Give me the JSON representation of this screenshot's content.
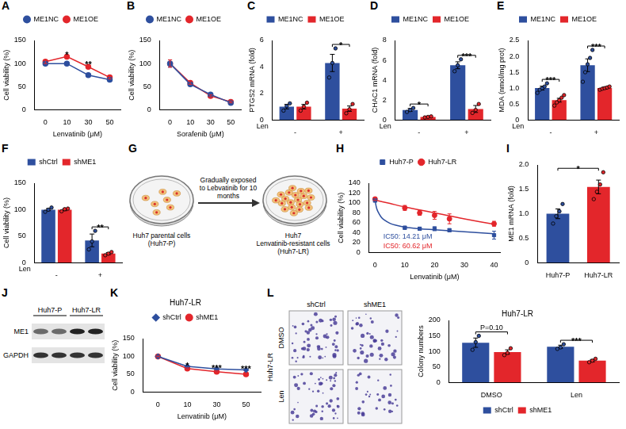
{
  "chart_data": [
    {
      "panel": "A",
      "type": "line",
      "categories": [
        "0",
        "10",
        "30",
        "50"
      ],
      "xlabel": "Lenvatinib (μM)",
      "ylabel": "Cell viability (%)",
      "ylim": [
        0,
        150
      ],
      "yticks": [
        0,
        50,
        100,
        150
      ],
      "legend": "top",
      "series": [
        {
          "name": "ME1NC",
          "color": "#2e4f9e",
          "marker": "circle",
          "values": [
            100,
            100,
            75,
            65
          ],
          "errors": [
            3,
            2,
            2,
            2
          ]
        },
        {
          "name": "ME1OE",
          "color": "#e3262b",
          "marker": "circle",
          "values": [
            104,
            115,
            93,
            70
          ],
          "errors": [
            4,
            2,
            3,
            3
          ]
        }
      ],
      "annotations": [
        {
          "text": "*",
          "category": "10"
        },
        {
          "text": "**",
          "category": "30"
        }
      ]
    },
    {
      "panel": "B",
      "type": "line",
      "categories": [
        "0",
        "10",
        "30",
        "50"
      ],
      "xlabel": "Sorafenib (μM)",
      "ylabel": "Cell viability (%)",
      "ylim": [
        0,
        150
      ],
      "yticks": [
        0,
        50,
        100,
        150
      ],
      "legend": "top",
      "series": [
        {
          "name": "ME1NC",
          "color": "#2e4f9e",
          "marker": "circle",
          "values": [
            100,
            55,
            33,
            15
          ],
          "errors": [
            8,
            3,
            2,
            2
          ]
        },
        {
          "name": "ME1OE",
          "color": "#e3262b",
          "marker": "circle",
          "values": [
            100,
            58,
            30,
            17
          ],
          "errors": [
            8,
            3,
            2,
            2
          ]
        }
      ]
    },
    {
      "panel": "C",
      "type": "bar",
      "categories": [
        "-",
        "+"
      ],
      "xlabel": "Len",
      "ylabel": "PTGS2 mRNA (fold)",
      "ylim": [
        0,
        6
      ],
      "yticks": [
        0,
        2,
        4,
        6
      ],
      "legend": "top",
      "series": [
        {
          "name": "ME1NC",
          "color": "#2e4f9e",
          "values": [
            1.0,
            4.3
          ],
          "errors": [
            0.17,
            0.65
          ],
          "points": [
            [
              0.7,
              1.05,
              1.25
            ],
            [
              3.2,
              4.3,
              5.4
            ]
          ]
        },
        {
          "name": "ME1OE",
          "color": "#e3262b",
          "values": [
            1.0,
            0.85
          ],
          "errors": [
            0.17,
            0.2
          ],
          "points": [
            [
              0.7,
              1.0,
              1.3
            ],
            [
              0.5,
              0.8,
              1.2
            ]
          ]
        }
      ],
      "annotations": [
        {
          "text": "*",
          "category": "+"
        }
      ]
    },
    {
      "panel": "D",
      "type": "bar",
      "categories": [
        "-",
        "+"
      ],
      "xlabel": "Len",
      "ylabel": "CHAC1 mRNA (fold)",
      "ylim": [
        0,
        8
      ],
      "yticks": [
        0,
        2,
        4,
        6,
        8
      ],
      "legend": "top",
      "series": [
        {
          "name": "ME1NC",
          "color": "#2e4f9e",
          "values": [
            1.0,
            5.5
          ],
          "errors": [
            0.15,
            0.35
          ],
          "points": [
            [
              0.8,
              1.0,
              1.2
            ],
            [
              4.9,
              5.5,
              6.1
            ]
          ]
        },
        {
          "name": "ME1OE",
          "color": "#e3262b",
          "values": [
            0.3,
            1.1
          ],
          "errors": [
            0.05,
            0.35
          ],
          "points": [
            [
              0.25,
              0.3,
              0.35
            ],
            [
              0.7,
              1.0,
              1.6
            ]
          ]
        }
      ],
      "annotations": [
        {
          "text": "*",
          "category": "-"
        },
        {
          "text": "***",
          "category": "+"
        }
      ]
    },
    {
      "panel": "E",
      "type": "bar",
      "categories": [
        "-",
        "+"
      ],
      "xlabel": "Len",
      "ylabel": "MDA (nmol/mg prot)",
      "ylim": [
        0,
        2.5
      ],
      "yticks": [
        0,
        0.5,
        {
          "value": 1,
          "label": "1.0"
        },
        1.5,
        {
          "value": 2,
          "label": "2.0"
        },
        2.5
      ],
      "legend": "top",
      "series": [
        {
          "name": "ME1NC",
          "color": "#2e4f9e",
          "values": [
            1.0,
            1.72
          ],
          "errors": [
            0.06,
            0.2
          ],
          "points": [
            [
              0.85,
              0.95,
              1.0,
              1.05,
              1.15
            ],
            [
              1.2,
              1.5,
              1.75,
              1.95,
              2.2
            ]
          ]
        },
        {
          "name": "ME1OE",
          "color": "#e3262b",
          "values": [
            0.62,
            1.0
          ],
          "errors": [
            0.06,
            0.03
          ],
          "points": [
            [
              0.45,
              0.55,
              0.62,
              0.7,
              0.78
            ],
            [
              0.95,
              0.98,
              1.0,
              1.02,
              1.05
            ]
          ]
        }
      ],
      "annotations": [
        {
          "text": "***",
          "category": "-"
        },
        {
          "text": "***",
          "category": "+"
        }
      ]
    },
    {
      "panel": "F",
      "type": "bar",
      "categories": [
        "-",
        "+"
      ],
      "xlabel": "Len",
      "ylabel": "Cell viability (%)",
      "ylim": [
        0,
        150
      ],
      "yticks": [
        0,
        50,
        100,
        150
      ],
      "legend": "top",
      "series": [
        {
          "name": "shCtrl",
          "color": "#2e4f9e",
          "values": [
            100,
            42
          ],
          "errors": [
            2,
            12
          ],
          "points": [
            [
              96,
              100,
              104
            ],
            [
              25,
              40,
              60
            ]
          ]
        },
        {
          "name": "shME1",
          "color": "#e3262b",
          "values": [
            100,
            17
          ],
          "errors": [
            2,
            2
          ],
          "points": [
            [
              97,
              101,
              102
            ],
            [
              14,
              17,
              20
            ]
          ]
        }
      ],
      "annotations": [
        {
          "text": "**",
          "category": "+"
        }
      ]
    },
    {
      "panel": "H",
      "type": "scatter",
      "xlabel": "Lenvatinib (μM)",
      "ylabel": "Cell viability (%)",
      "xlim": [
        -2,
        42
      ],
      "xticks": [
        0,
        10,
        20,
        30,
        40
      ],
      "ylim": [
        0,
        140
      ],
      "yticks": [
        0,
        20,
        40,
        60,
        80,
        100,
        120,
        140
      ],
      "legend": "top",
      "series": [
        {
          "name": "Huh7-P",
          "color": "#2e4f9e",
          "marker": "square",
          "x": [
            0,
            10,
            15,
            20,
            25,
            40
          ],
          "values": [
            105,
            50,
            48,
            48,
            45,
            35
          ],
          "errors": [
            3,
            3,
            3,
            4,
            3,
            8
          ],
          "fit": {
            "x": [
              0,
              0.5,
              1,
              2,
              3,
              5,
              7,
              10,
              15,
              20,
              30,
              40
            ],
            "values": [
              105,
              90,
              82,
              72,
              66,
              59,
              55,
              51,
              48,
              46,
              42,
              38
            ]
          },
          "ic50_label": "IC50: 14.21 μM"
        },
        {
          "name": "Huh7-LR",
          "color": "#e3262b",
          "marker": "circle",
          "x": [
            0,
            10,
            15,
            20,
            25,
            40
          ],
          "values": [
            108,
            90,
            80,
            75,
            68,
            58
          ],
          "errors": [
            3,
            5,
            5,
            8,
            10,
            5
          ],
          "fit": {
            "x": [
              0,
              5,
              10,
              15,
              20,
              25,
              30,
              40
            ],
            "values": [
              106,
              99,
              92,
              86,
              80,
              74,
              68,
              57
            ]
          },
          "ic50_label": "IC50: 60.62 μM"
        }
      ]
    },
    {
      "panel": "I",
      "type": "bar",
      "categories": [
        "Huh7-P",
        "Huh7-LR"
      ],
      "ylabel": "ME1 mRNA (fold)",
      "ylim": [
        0,
        2
      ],
      "yticks": [
        0,
        0.5,
        {
          "value": 1,
          "label": "1.0"
        },
        1.5,
        {
          "value": 2,
          "label": "2.0"
        }
      ],
      "values": [
        1.0,
        1.55
      ],
      "colors": [
        "#2e4f9e",
        "#e3262b"
      ],
      "errors": [
        0.1,
        0.14
      ],
      "points": [
        [
          0.8,
          0.95,
          1.05,
          1.2
        ],
        [
          1.3,
          1.45,
          1.6,
          1.85
        ]
      ],
      "annotations": [
        {
          "text": "*",
          "from": "Huh7-P",
          "to": "Huh7-LR"
        }
      ]
    },
    {
      "panel": "K",
      "type": "line",
      "title": "Huh7-LR",
      "categories": [
        "0",
        "10",
        "30",
        "50"
      ],
      "xlabel": "Lenvatinib (μM)",
      "ylabel": "Cell viability (%)",
      "ylim": [
        0,
        150
      ],
      "yticks": [
        0,
        50,
        100,
        150
      ],
      "legend": "top",
      "series": [
        {
          "name": "shCtrl",
          "color": "#2e4f9e",
          "marker": "diamond",
          "values": [
            100,
            72,
            65,
            62
          ],
          "errors": [
            1,
            1,
            1,
            1
          ]
        },
        {
          "name": "shME1",
          "color": "#e3262b",
          "marker": "circle",
          "values": [
            100,
            66,
            57,
            50
          ],
          "errors": [
            1,
            2,
            3,
            3
          ]
        }
      ],
      "annotations": [
        {
          "text": "*",
          "category": "10"
        },
        {
          "text": "***",
          "category": "30"
        },
        {
          "text": "***",
          "category": "50"
        }
      ]
    },
    {
      "type": "bar",
      "title": "Huh7-LR",
      "categories": [
        "DMSO",
        "Len"
      ],
      "ylabel": "Colony numbers",
      "ylim": [
        0,
        200
      ],
      "yticks": [
        0,
        50,
        100,
        150,
        200
      ],
      "legend": "bottom",
      "series": [
        {
          "name": "shCtrl",
          "color": "#2e4f9e",
          "values": [
            128,
            115
          ],
          "errors": [
            15,
            5
          ],
          "points": [
            [
              105,
              130,
              150
            ],
            [
              108,
              113,
              123
            ]
          ]
        },
        {
          "name": "shME1",
          "color": "#e3262b",
          "values": [
            98,
            70
          ],
          "errors": [
            7,
            4
          ],
          "points": [
            [
              88,
              95,
              110
            ],
            [
              65,
              70,
              76
            ]
          ]
        }
      ],
      "annotations": [
        {
          "text": "P=0.10",
          "category": "DMSO"
        },
        {
          "text": "***",
          "category": "Len"
        }
      ]
    }
  ],
  "diagram": {
    "panel": "G",
    "left_label": "Huh7 parental cells (Huh7-P)",
    "arrow_label": "Gradually exposed to Lebvatinib for 10 months",
    "right_label": "Huh7 Lenvatinib-resistant cells (Huh7-LR)"
  },
  "blot": {
    "panel": "J",
    "lane_groups": [
      "Huh7-P",
      "Huh7-LR"
    ],
    "rows": [
      "ME1",
      "GAPDH"
    ]
  },
  "colony_images": {
    "panel": "L",
    "cell_line": "Huh7-LR",
    "columns": [
      "shCtrl",
      "shME1"
    ],
    "rows": [
      "DMSO",
      "Len"
    ]
  }
}
